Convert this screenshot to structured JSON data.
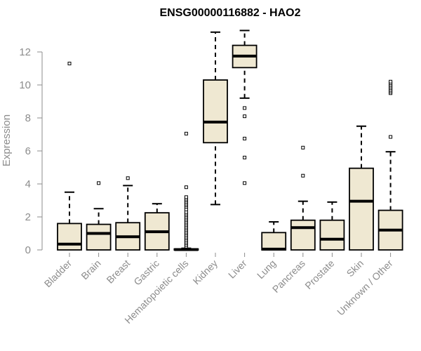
{
  "chart_data": {
    "type": "box",
    "title": "ENSG00000116882 - HAO2",
    "xlabel": "",
    "ylabel": "Expression",
    "ylim": [
      0,
      13.5
    ],
    "yticks": [
      0,
      2,
      4,
      6,
      8,
      10,
      12
    ],
    "grid": false,
    "legend": "none",
    "colors": {
      "box_fill": "#efe8d2",
      "stroke": "#000000",
      "axis": "#8c8c8c"
    },
    "categories": [
      "Bladder",
      "Brain",
      "Breast",
      "Gastric",
      "Hematopoietic cells",
      "Kidney",
      "Liver",
      "Lung",
      "Pancreas",
      "Prostate",
      "Skin",
      "Unknown / Other"
    ],
    "boxes": [
      {
        "category": "Bladder",
        "whisker_low": 0,
        "q1": 0,
        "median": 0.35,
        "q3": 1.6,
        "whisker_high": 3.5,
        "outliers": [
          11.3
        ]
      },
      {
        "category": "Brain",
        "whisker_low": 0,
        "q1": 0,
        "median": 1.0,
        "q3": 1.55,
        "whisker_high": 2.5,
        "outliers": [
          4.05
        ]
      },
      {
        "category": "Breast",
        "whisker_low": 0,
        "q1": 0,
        "median": 0.8,
        "q3": 1.65,
        "whisker_high": 3.9,
        "outliers": [
          4.35
        ]
      },
      {
        "category": "Gastric",
        "whisker_low": 0,
        "q1": 0,
        "median": 1.1,
        "q3": 2.25,
        "whisker_high": 2.8,
        "outliers": []
      },
      {
        "category": "Hematopoietic cells",
        "whisker_low": 0,
        "q1": 0,
        "median": 0.02,
        "q3": 0.06,
        "whisker_high": 0.1,
        "outliers": [
          0.2,
          0.3,
          0.4,
          0.5,
          0.6,
          0.7,
          0.8,
          0.9,
          1.0,
          1.1,
          1.2,
          1.3,
          1.4,
          1.5,
          1.6,
          1.7,
          1.8,
          1.9,
          2.0,
          2.1,
          2.2,
          2.3,
          2.45,
          2.6,
          2.7,
          2.8,
          2.9,
          3.0,
          3.1,
          3.2,
          3.8,
          7.05
        ]
      },
      {
        "category": "Kidney",
        "whisker_low": 2.75,
        "q1": 6.5,
        "median": 7.75,
        "q3": 10.3,
        "whisker_high": 13.2,
        "outliers": []
      },
      {
        "category": "Liver",
        "whisker_low": 9.2,
        "q1": 11.05,
        "median": 11.75,
        "q3": 12.4,
        "whisker_high": 13.3,
        "outliers": [
          8.6,
          8.1,
          6.75,
          5.6,
          4.05
        ]
      },
      {
        "category": "Lung",
        "whisker_low": 0,
        "q1": 0,
        "median": 0.05,
        "q3": 1.05,
        "whisker_high": 1.7,
        "outliers": []
      },
      {
        "category": "Pancreas",
        "whisker_low": 0,
        "q1": 0,
        "median": 1.35,
        "q3": 1.8,
        "whisker_high": 2.95,
        "outliers": [
          4.5,
          6.2
        ]
      },
      {
        "category": "Prostate",
        "whisker_low": 0,
        "q1": 0,
        "median": 0.65,
        "q3": 1.8,
        "whisker_high": 2.9,
        "outliers": []
      },
      {
        "category": "Skin",
        "whisker_low": 0,
        "q1": 0,
        "median": 2.95,
        "q3": 4.95,
        "whisker_high": 7.5,
        "outliers": []
      },
      {
        "category": "Unknown / Other",
        "whisker_low": 0,
        "q1": 0,
        "median": 1.2,
        "q3": 2.4,
        "whisker_high": 5.95,
        "outliers": [
          6.85,
          9.5,
          9.6,
          9.7,
          9.8,
          9.9,
          10.0,
          10.1,
          10.2
        ]
      }
    ]
  }
}
